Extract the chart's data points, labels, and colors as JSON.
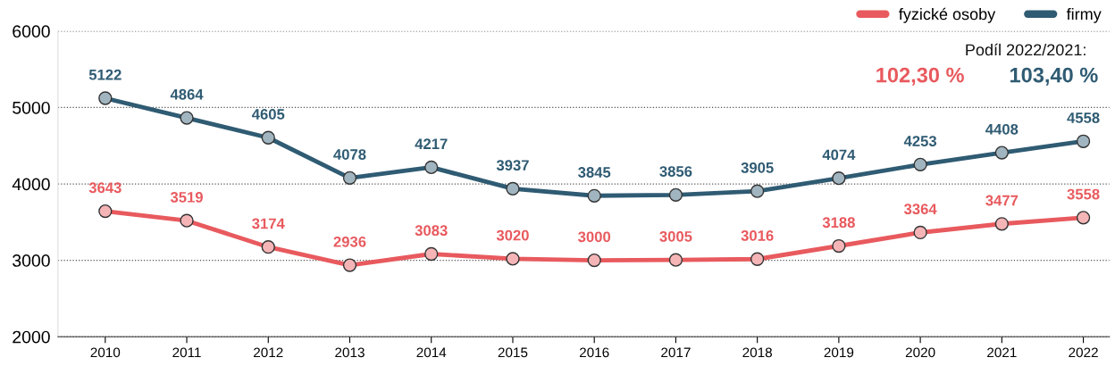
{
  "chart_data": {
    "type": "line",
    "categories": [
      "2010",
      "2011",
      "2012",
      "2013",
      "2014",
      "2015",
      "2016",
      "2017",
      "2018",
      "2019",
      "2020",
      "2021",
      "2022"
    ],
    "series": [
      {
        "name": "fyzické osoby",
        "color": "#e85a5e",
        "values": [
          3643,
          3519,
          3174,
          2936,
          3083,
          3020,
          3000,
          3005,
          3016,
          3188,
          3364,
          3477,
          3558
        ]
      },
      {
        "name": "firmy",
        "color": "#2f5b73",
        "values": [
          5122,
          4864,
          4605,
          4078,
          4217,
          3937,
          3845,
          3856,
          3905,
          4074,
          4253,
          4408,
          4558
        ]
      }
    ],
    "ylim": [
      2000,
      6000
    ],
    "yticks": [
      2000,
      3000,
      4000,
      5000,
      6000
    ],
    "grid": "y",
    "legend": "top right",
    "marker": "circle",
    "line_style": "solid",
    "data_labels": true,
    "annotations": [
      "Podíl 2022/2021:",
      "102,30 %",
      "103,40 %"
    ]
  }
}
